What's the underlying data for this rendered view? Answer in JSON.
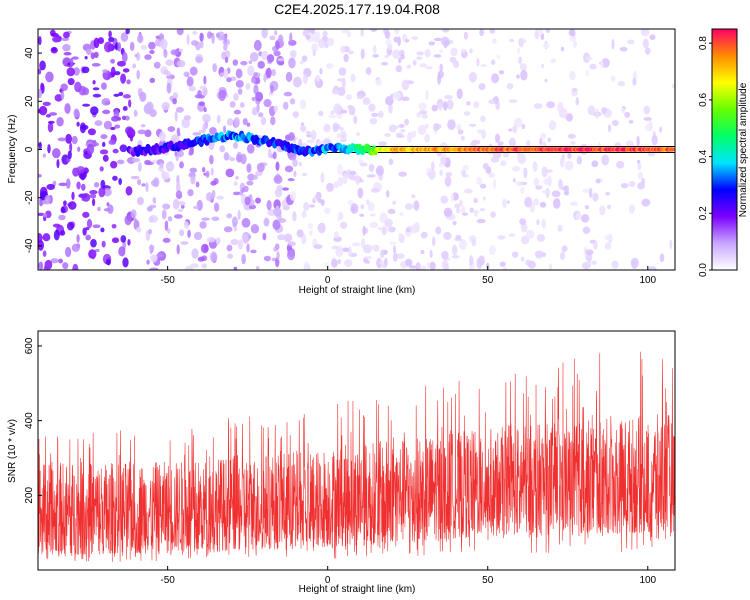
{
  "title": "C2E4.2025.177.19.04.R08",
  "chart_data": [
    {
      "type": "heatmap",
      "xlabel": "Height of straight line (km)",
      "ylabel": "Frequency (Hz)",
      "xlim": [
        -90.5,
        108.5
      ],
      "ylim": [
        -50,
        50
      ],
      "xticks": [
        -50,
        0,
        50,
        100
      ],
      "yticks": [
        -40,
        -20,
        0,
        20,
        40
      ],
      "colorbar": {
        "label": "Normalized spectral amplitude",
        "range": [
          0,
          0.85
        ],
        "ticks": [
          "0.0",
          "0.2",
          "0.4",
          "0.6",
          "0.8"
        ],
        "tick_values": [
          0,
          0.2,
          0.4,
          0.6,
          0.8
        ],
        "colors": [
          "#ffffff",
          "#c9a6ff",
          "#7a00ff",
          "#0000ff",
          "#00e5ff",
          "#00ff66",
          "#66ff00",
          "#ffff00",
          "#ff8c00",
          "#ff0066"
        ]
      },
      "reference_line_y": 0,
      "ridge": {
        "x": [
          -62,
          -55,
          -45,
          -38,
          -30,
          -25,
          -18,
          -12,
          -8,
          -2,
          4,
          8,
          14,
          20,
          40,
          60,
          80,
          100,
          108
        ],
        "y": [
          -1,
          0,
          2,
          4,
          6,
          5,
          3,
          1,
          -1,
          0,
          1,
          0,
          0,
          0,
          0,
          0,
          0,
          0,
          0
        ],
        "amplitude": [
          0.2,
          0.22,
          0.26,
          0.3,
          0.34,
          0.32,
          0.3,
          0.28,
          0.3,
          0.32,
          0.35,
          0.4,
          0.55,
          0.7,
          0.75,
          0.8,
          0.82,
          0.8,
          0.78
        ]
      }
    },
    {
      "type": "line",
      "xlabel": "Height of straight line (km)",
      "ylabel": "SNR (10 * v/v)",
      "xlim": [
        -90.5,
        108.5
      ],
      "ylim": [
        0,
        640
      ],
      "xticks": [
        -50,
        0,
        50,
        100
      ],
      "yticks": [
        200,
        400,
        600
      ],
      "color": "#f03030",
      "trend": {
        "x": [
          -90,
          -50,
          0,
          50,
          108
        ],
        "band_low": [
          40,
          45,
          60,
          90,
          100
        ],
        "band_high": [
          290,
          290,
          330,
          380,
          420
        ],
        "peak_max": [
          370,
          380,
          450,
          520,
          620
        ]
      }
    }
  ]
}
